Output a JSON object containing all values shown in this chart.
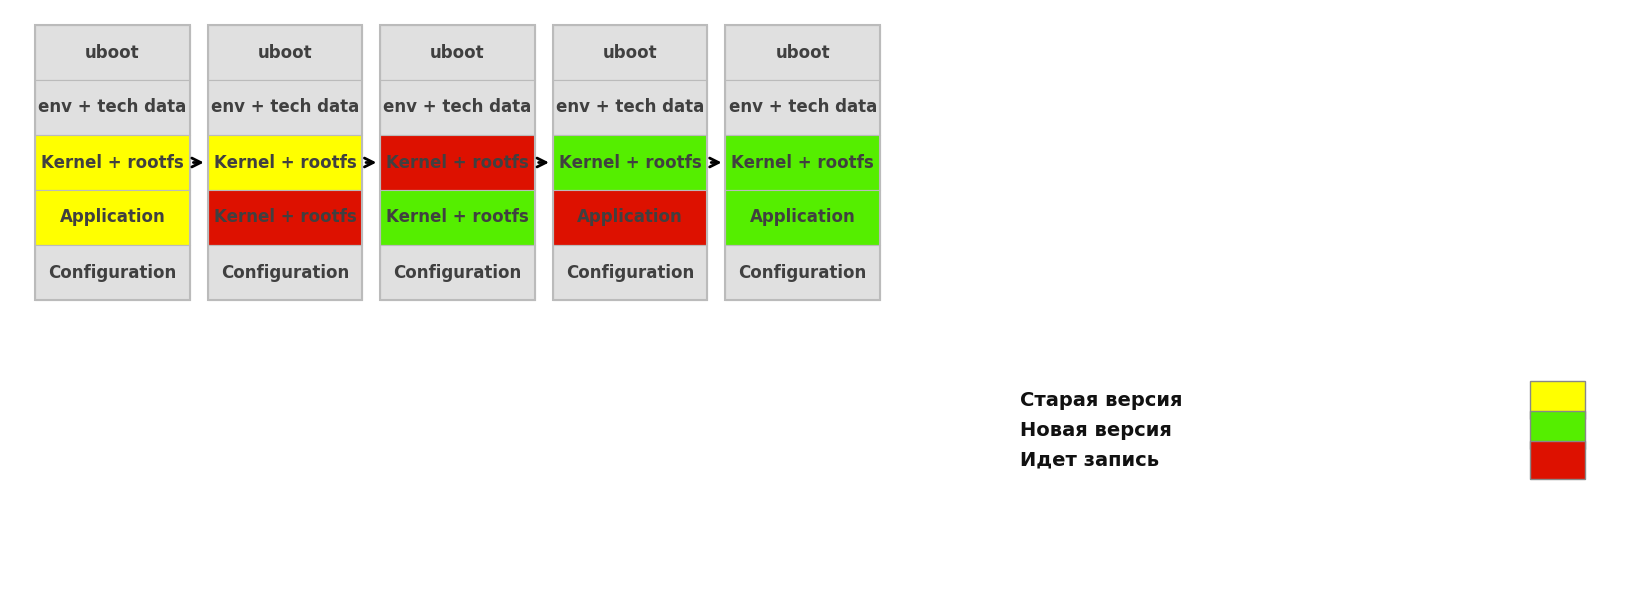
{
  "background_color": "#ffffff",
  "fig_width": 16.5,
  "fig_height": 6.02,
  "box_border_color": "#bbbbbb",
  "box_fill": "#e0e0e0",
  "text_color": "#404040",
  "yellow": "#ffff00",
  "green": "#55ee00",
  "red": "#dd1100",
  "font_size": 12,
  "legend_font_size": 14,
  "boxes": [
    {
      "rows": [
        {
          "label": "uboot",
          "color": "#e0e0e0"
        },
        {
          "label": "env + tech data",
          "color": "#e0e0e0"
        },
        {
          "label": "Kernel + rootfs",
          "color": "#ffff00"
        },
        {
          "label": "Application",
          "color": "#ffff00"
        },
        {
          "label": "Configuration",
          "color": "#e0e0e0"
        }
      ]
    },
    {
      "rows": [
        {
          "label": "uboot",
          "color": "#e0e0e0"
        },
        {
          "label": "env + tech data",
          "color": "#e0e0e0"
        },
        {
          "label": "Kernel + rootfs",
          "color": "#ffff00"
        },
        {
          "label": "Kernel + rootfs",
          "color": "#dd1100"
        },
        {
          "label": "Configuration",
          "color": "#e0e0e0"
        }
      ]
    },
    {
      "rows": [
        {
          "label": "uboot",
          "color": "#e0e0e0"
        },
        {
          "label": "env + tech data",
          "color": "#e0e0e0"
        },
        {
          "label": "Kernel + rootfs",
          "color": "#dd1100"
        },
        {
          "label": "Kernel + rootfs",
          "color": "#55ee00"
        },
        {
          "label": "Configuration",
          "color": "#e0e0e0"
        }
      ]
    },
    {
      "rows": [
        {
          "label": "uboot",
          "color": "#e0e0e0"
        },
        {
          "label": "env + tech data",
          "color": "#e0e0e0"
        },
        {
          "label": "Kernel + rootfs",
          "color": "#55ee00"
        },
        {
          "label": "Application",
          "color": "#dd1100"
        },
        {
          "label": "Configuration",
          "color": "#e0e0e0"
        }
      ]
    },
    {
      "rows": [
        {
          "label": "uboot",
          "color": "#e0e0e0"
        },
        {
          "label": "env + tech data",
          "color": "#e0e0e0"
        },
        {
          "label": "Kernel + rootfs",
          "color": "#55ee00"
        },
        {
          "label": "Application",
          "color": "#55ee00"
        },
        {
          "label": "Configuration",
          "color": "#e0e0e0"
        }
      ]
    }
  ],
  "legend": [
    {
      "label": "Старая версия",
      "color": "#ffff00"
    },
    {
      "label": "Новая версия",
      "color": "#55ee00"
    },
    {
      "label": "Идет запись",
      "color": "#dd1100"
    }
  ]
}
